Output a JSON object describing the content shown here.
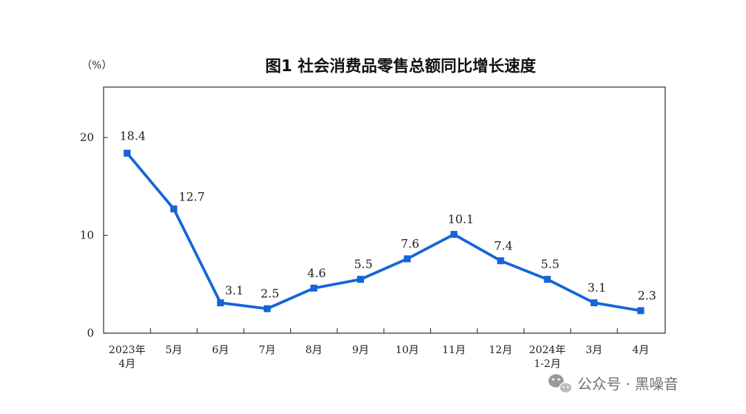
{
  "chart_data": {
    "type": "line",
    "title": "图1  社会消费品零售总额同比增长速度",
    "unit": "（%）",
    "categories": [
      [
        "2023年",
        "4月"
      ],
      [
        "5月"
      ],
      [
        "6月"
      ],
      [
        "7月"
      ],
      [
        "8月"
      ],
      [
        "9月"
      ],
      [
        "10月"
      ],
      [
        "11月"
      ],
      [
        "12月"
      ],
      [
        "2024年",
        "1-2月"
      ],
      [
        "3月"
      ],
      [
        "4月"
      ]
    ],
    "values": [
      18.4,
      12.7,
      3.1,
      2.5,
      4.6,
      5.5,
      7.6,
      10.1,
      7.4,
      5.5,
      3.1,
      2.3
    ],
    "data_labels": [
      "18.4",
      "12.7",
      "3.1",
      "2.5",
      "4.6",
      "5.5",
      "7.6",
      "10.1",
      "7.4",
      "5.5",
      "3.1",
      "2.3"
    ],
    "yticks": [
      0,
      10,
      20
    ],
    "ylim": [
      0,
      25
    ],
    "grid": false,
    "line_color": "#1565d8",
    "marker": "square"
  },
  "watermark": {
    "text": "公众号 · 黑噪音",
    "icon": "wechat-icon",
    "color": "#6f6f6f"
  }
}
